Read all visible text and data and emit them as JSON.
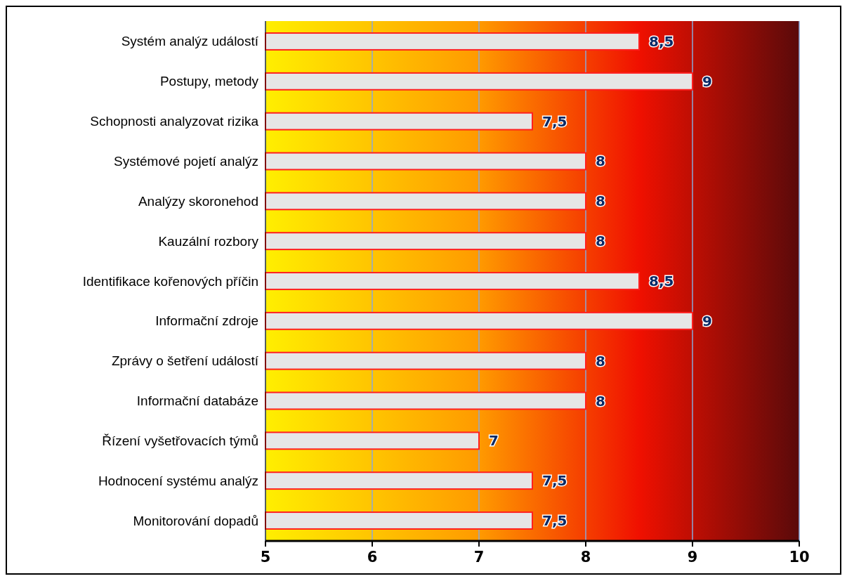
{
  "chart_data": {
    "type": "bar",
    "orientation": "horizontal",
    "categories": [
      "Systém analýz událostí",
      "Postupy, metody",
      "Schopnosti analyzovat rizika",
      "Systémové pojetí analýz",
      "Analýzy skoronehod",
      "Kauzální rozbory ",
      "Identifikace kořenových příčin",
      "Informační zdroje",
      "Zprávy o šetření událostí",
      "Informační databáze",
      "Řízení vyšetřovacích týmů",
      "Hodnocení systému analýz",
      "Monitorování dopadů"
    ],
    "values": [
      8.5,
      9,
      7.5,
      8,
      8,
      8,
      8.5,
      9,
      8,
      8,
      7,
      7.5,
      7.5
    ],
    "value_labels": [
      "8,5",
      "9",
      "7,5",
      "8",
      "8",
      "8",
      "8,5",
      "9",
      "8",
      "8",
      "7",
      "7,5",
      "7,5"
    ],
    "color": "#e6e6e6",
    "xlim": [
      5,
      10
    ],
    "xticks": [
      5,
      6,
      7,
      8,
      9,
      10
    ],
    "grid": "x"
  }
}
